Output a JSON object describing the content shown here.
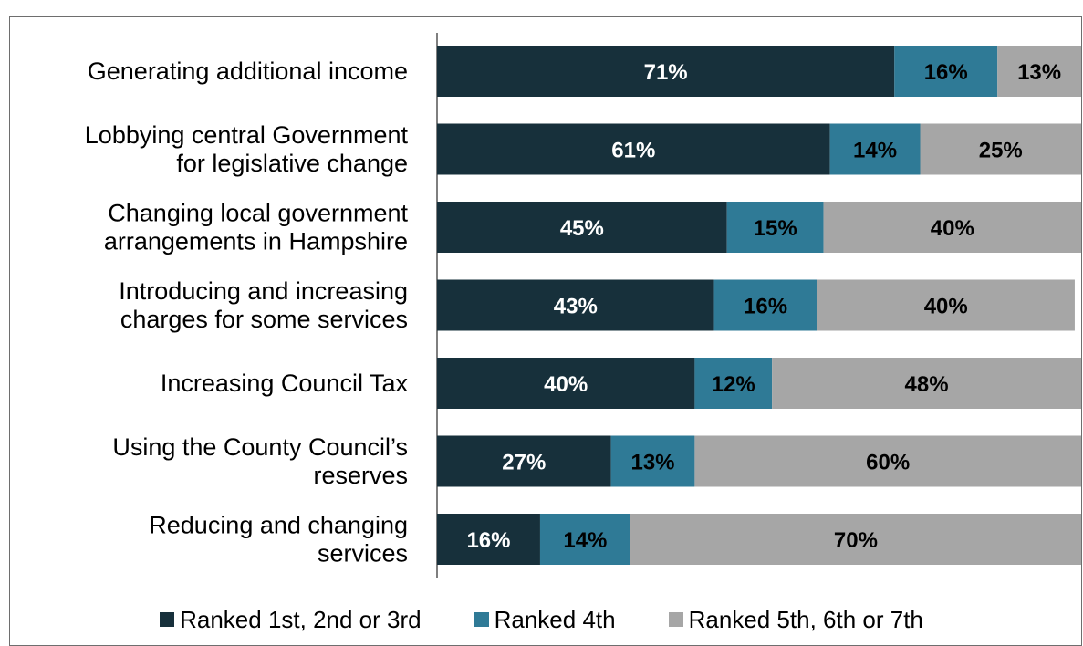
{
  "chart_data": {
    "type": "bar",
    "orientation": "horizontal",
    "stacked": true,
    "categories": [
      [
        "Generating additional income"
      ],
      [
        "Lobbying central Government",
        "for legislative change"
      ],
      [
        "Changing local government",
        "arrangements in Hampshire"
      ],
      [
        "Introducing and increasing",
        "charges for some services"
      ],
      [
        "Increasing Council Tax"
      ],
      [
        "Using the County Council’s",
        "reserves"
      ],
      [
        "Reducing and changing",
        "services"
      ]
    ],
    "series": [
      {
        "name": "Ranked 1st, 2nd or 3rd",
        "color": "#17303b",
        "label_color": "#ffffff",
        "values": [
          71,
          61,
          45,
          43,
          40,
          27,
          16
        ],
        "labels": [
          "71%",
          "61%",
          "45%",
          "43%",
          "40%",
          "27%",
          "16%"
        ]
      },
      {
        "name": "Ranked 4th",
        "color": "#2f7a96",
        "label_color": "#000000",
        "values": [
          16,
          14,
          15,
          16,
          12,
          13,
          14
        ],
        "labels": [
          "16%",
          "14%",
          "15%",
          "16%",
          "12%",
          "13%",
          "14%"
        ]
      },
      {
        "name": "Ranked 5th, 6th or 7th",
        "color": "#a6a6a6",
        "label_color": "#000000",
        "values": [
          13,
          25,
          40,
          40,
          48,
          60,
          70
        ],
        "labels": [
          "13%",
          "25%",
          "40%",
          "40%",
          "48%",
          "60%",
          "70%"
        ]
      }
    ],
    "xlim": [
      0,
      100
    ],
    "legend_position": "bottom",
    "grid": false
  }
}
